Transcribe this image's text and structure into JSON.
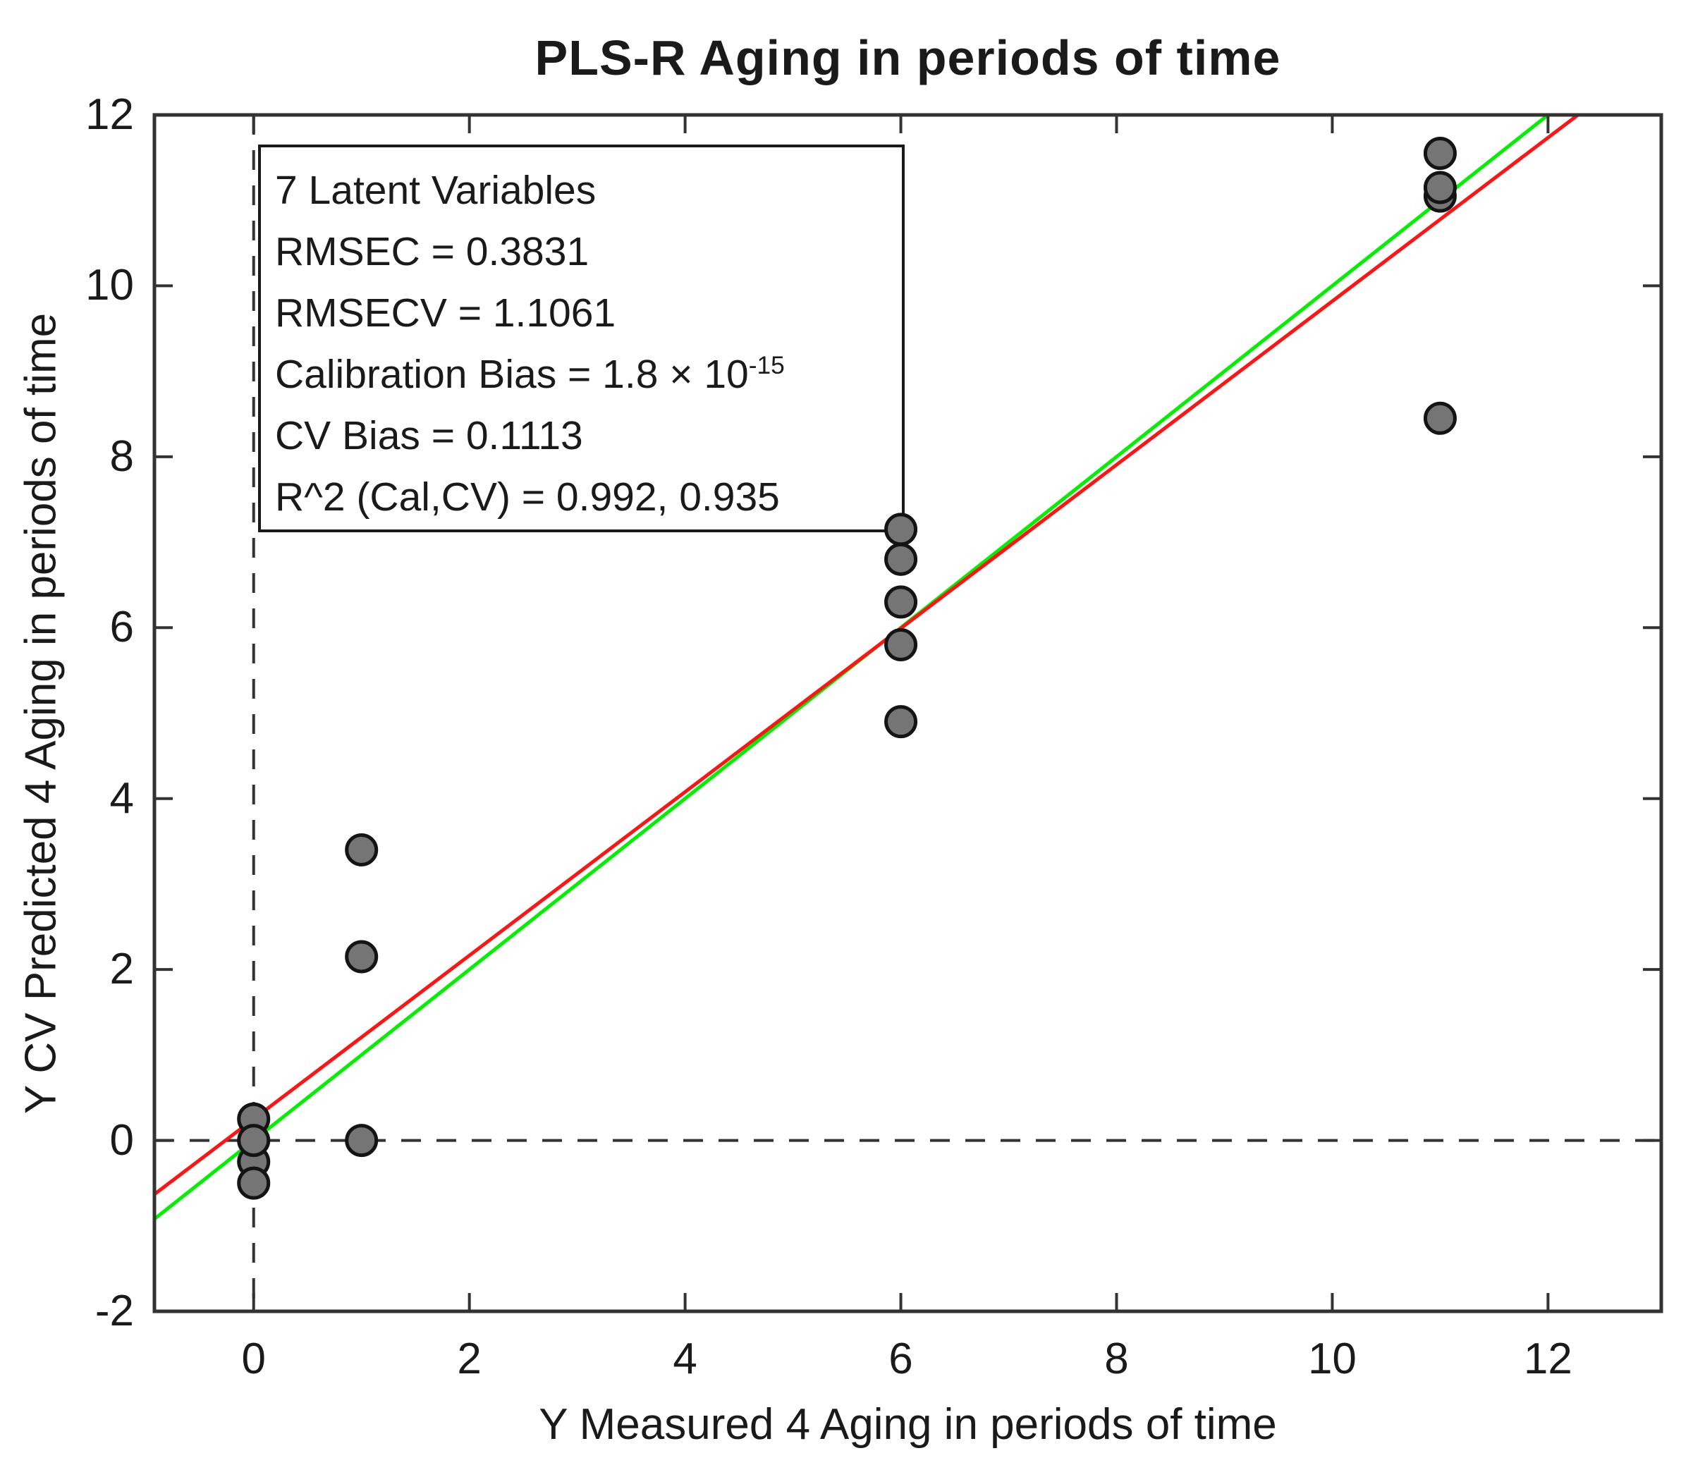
{
  "chart_data": {
    "type": "scatter",
    "title": "PLS-R Aging in periods of time",
    "xlabel": "Y Measured 4 Aging in periods of time",
    "ylabel": "Y CV Predicted 4 Aging in periods of time",
    "xlim": [
      -0.92,
      13.05
    ],
    "ylim": [
      -2,
      12
    ],
    "xticks": [
      0,
      2,
      4,
      6,
      8,
      10,
      12
    ],
    "yticks": [
      -2,
      0,
      2,
      4,
      6,
      8,
      10,
      12
    ],
    "grid": false,
    "legend": "none",
    "axis_color": "#333333",
    "zero_lines": {
      "color": "#333333",
      "style": "dashed",
      "x_at": 0,
      "y_at": 0
    },
    "series": [
      {
        "name": "samples",
        "marker": "circle",
        "marker_fill": "#757575",
        "marker_edge": "#141414",
        "points": [
          [
            0,
            -0.25
          ],
          [
            0,
            -0.5
          ],
          [
            0,
            0.25
          ],
          [
            0,
            0.0
          ],
          [
            1,
            3.4
          ],
          [
            1,
            2.15
          ],
          [
            1,
            0.0
          ],
          [
            6,
            7.15
          ],
          [
            6,
            6.8
          ],
          [
            6,
            6.3
          ],
          [
            6,
            5.8
          ],
          [
            6,
            4.9
          ],
          [
            11,
            11.55
          ],
          [
            11,
            11.05
          ],
          [
            11,
            11.15
          ],
          [
            11,
            8.45
          ]
        ]
      }
    ],
    "fit_lines": [
      {
        "name": "identity-line",
        "color": "#00f000",
        "slope": 1,
        "intercept": 0
      },
      {
        "name": "regression-line",
        "color": "#ff1414",
        "slope": 0.957,
        "intercept": 0.25
      }
    ],
    "annotation": {
      "lines": [
        {
          "text": "7 Latent Variables"
        },
        {
          "text": "RMSEC = 0.3831"
        },
        {
          "text": "RMSECV = 1.1061"
        },
        {
          "text": "Calibration Bias = 1.8 × 10",
          "sup": "-15"
        },
        {
          "text": "CV Bias = 0.1113"
        },
        {
          "text": "R^2 (Cal,CV) = 0.992, 0.935"
        }
      ]
    }
  }
}
